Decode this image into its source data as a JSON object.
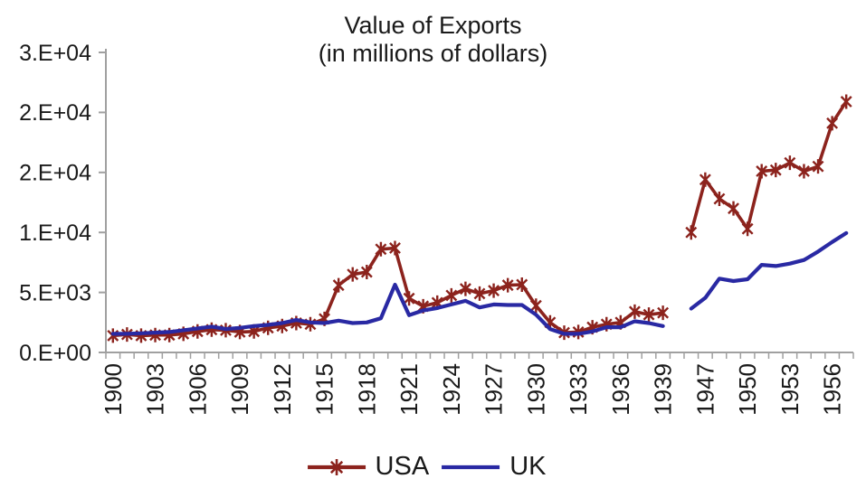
{
  "title": {
    "line1": "Value of Exports",
    "line2": "(in millions of dollars)"
  },
  "legend": {
    "position": "bottom",
    "items": [
      {
        "label": "USA",
        "color": "#8C231D",
        "marker": "star"
      },
      {
        "label": "UK",
        "color": "#2929A3",
        "marker": "line"
      }
    ]
  },
  "chart_data": {
    "type": "line",
    "title": "Value of Exports (in millions of dollars)",
    "xlabel": "",
    "ylabel": "",
    "grid": false,
    "legend_position": "bottom",
    "colors": {
      "axis": "#A0A0A0",
      "text": "#1A1A1A"
    },
    "y_axis": {
      "min": 0,
      "max": 25000,
      "tick_interval": 5000,
      "tick_values": [
        0,
        5000,
        10000,
        15000,
        20000,
        25000
      ],
      "tick_labels": [
        "0.E+00",
        "5.E+03",
        "1.E+04",
        "2.E+04",
        "2.E+04",
        "3.E+04"
      ]
    },
    "x_categories": [
      1900,
      1901,
      1902,
      1903,
      1904,
      1905,
      1906,
      1907,
      1908,
      1909,
      1910,
      1911,
      1912,
      1913,
      1914,
      1915,
      1916,
      1917,
      1918,
      1919,
      1920,
      1921,
      1922,
      1923,
      1924,
      1925,
      1926,
      1927,
      1928,
      1929,
      1930,
      1931,
      1932,
      1933,
      1934,
      1935,
      1936,
      1937,
      1938,
      1939,
      1945,
      1946,
      1947,
      1948,
      1949,
      1950,
      1951,
      1952,
      1953,
      1954,
      1955,
      1956,
      1957
    ],
    "x_tick_labels": [
      "1900",
      "1903",
      "1906",
      "1909",
      "1912",
      "1915",
      "1918",
      "1921",
      "1924",
      "1927",
      "1930",
      "1933",
      "1936",
      "1939",
      "1947",
      "1950",
      "1953",
      "1956"
    ],
    "series": [
      {
        "name": "USA",
        "color": "#8C231D",
        "marker": "star",
        "values": [
          1400,
          1500,
          1400,
          1450,
          1450,
          1550,
          1750,
          1900,
          1850,
          1700,
          1750,
          2050,
          2200,
          2450,
          2350,
          2800,
          5600,
          6500,
          6700,
          8600,
          8700,
          4500,
          3850,
          4150,
          4750,
          5300,
          4900,
          5150,
          5600,
          5650,
          3900,
          2500,
          1650,
          1700,
          2100,
          2350,
          2500,
          3400,
          3150,
          3300,
          null,
          10000,
          14400,
          12800,
          12000,
          10300,
          15100,
          15200,
          15800,
          15100,
          15500,
          19100,
          20900
        ]
      },
      {
        "name": "UK",
        "color": "#2929A3",
        "marker": "none",
        "values": [
          1550,
          1550,
          1600,
          1650,
          1700,
          1850,
          2000,
          2150,
          1950,
          2050,
          2200,
          2300,
          2450,
          2700,
          2500,
          2450,
          2650,
          2450,
          2500,
          2850,
          5650,
          3100,
          3500,
          3700,
          4000,
          4300,
          3750,
          4000,
          3950,
          3950,
          3150,
          1950,
          1550,
          1550,
          1750,
          2100,
          2100,
          2600,
          2450,
          2200,
          null,
          3650,
          4550,
          6150,
          5950,
          6100,
          7300,
          7200,
          7400,
          7700,
          8400,
          9200,
          9950
        ]
      }
    ]
  }
}
